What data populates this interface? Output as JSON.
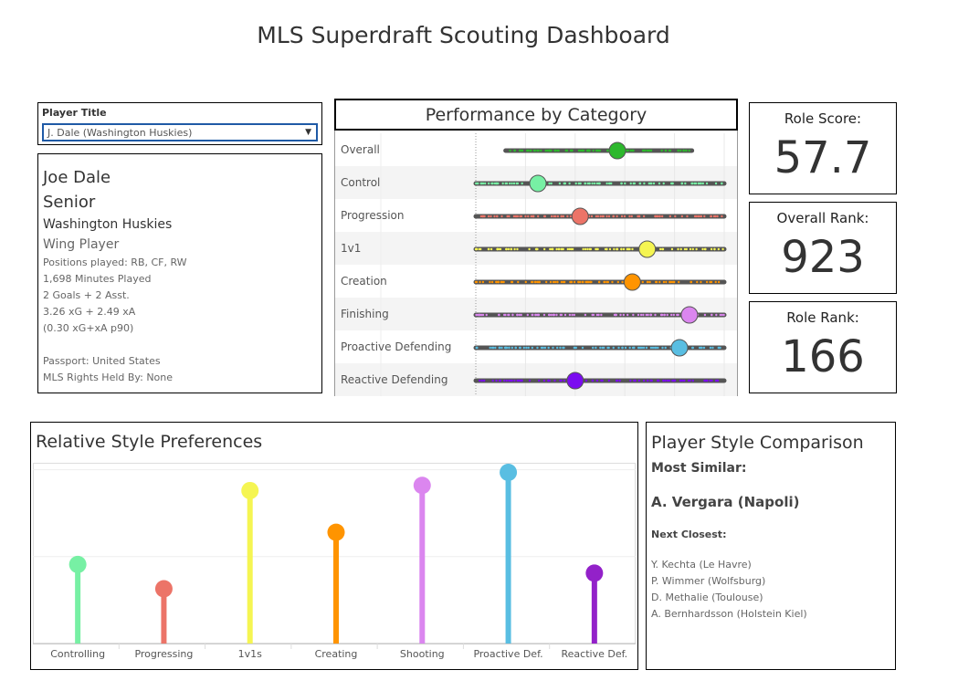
{
  "title": "MLS Superdraft Scouting Dashboard",
  "filter": {
    "label": "Player Title",
    "selected": "J. Dale (Washington Huskies)"
  },
  "player": {
    "name": "Joe Dale",
    "year": "Senior",
    "team": "Washington Huskies",
    "role": "Wing Player",
    "positions": "Positions played: RB, CF, RW",
    "minutes": "1,698 Minutes Played",
    "goals": "2 Goals + 2 Asst.",
    "xg": "3.26 xG + 2.49 xA",
    "xg_p90": "(0.30 xG+xA p90)",
    "passport": "Passport: United States",
    "rights": "MLS Rights Held By: None"
  },
  "kpis": [
    {
      "label": "Role Score:",
      "value": "57.7"
    },
    {
      "label": "Overall Rank:",
      "value": "923"
    },
    {
      "label": "Role Rank:",
      "value": "166"
    }
  ],
  "comparison": {
    "title": "Player Style Comparison",
    "most_similar_label": "Most Similar:",
    "most_similar": "A. Vergara (Napoli)",
    "next_label": "Next Closest:",
    "next": [
      "Y. Kechta (Le Havre)",
      "P. Wimmer (Wolfsburg)",
      "D. Methalie (Toulouse)",
      "A. Bernhardsson (Holstein Kiel)"
    ]
  },
  "chart_data": [
    {
      "type": "scatter",
      "title": "Performance by Category",
      "xlim": [
        0,
        100
      ],
      "grid": true,
      "categories": [
        "Overall",
        "Control",
        "Progression",
        "1v1",
        "Creation",
        "Finishing",
        "Proactive Defending",
        "Reactive Defending"
      ],
      "player_values": [
        57,
        25,
        42,
        69,
        63,
        86,
        82,
        40
      ],
      "distribution_ranges": [
        [
          12,
          87
        ],
        [
          0,
          100
        ],
        [
          0,
          100
        ],
        [
          0,
          100
        ],
        [
          0,
          100
        ],
        [
          0,
          100
        ],
        [
          0,
          100
        ],
        [
          0,
          100
        ]
      ],
      "colors": [
        "#2db82d",
        "#77f0a4",
        "#ec7468",
        "#f5f552",
        "#ff9400",
        "#db86ef",
        "#59bee2",
        "#7b0cf0"
      ]
    },
    {
      "type": "bar",
      "title": "Relative Style Preferences",
      "categories": [
        "Controlling",
        "Progressing",
        "1v1s",
        "Creating",
        "Shooting",
        "Proactive Def.",
        "Reactive Def."
      ],
      "values": [
        0.91,
        0.63,
        1.76,
        1.28,
        1.82,
        1.97,
        0.81
      ],
      "ylim": [
        0,
        2.08
      ],
      "grid": true,
      "colors": [
        "#77f0a4",
        "#ec7468",
        "#f5f552",
        "#ff9400",
        "#db86ef",
        "#59bee2",
        "#9321c9"
      ]
    }
  ]
}
